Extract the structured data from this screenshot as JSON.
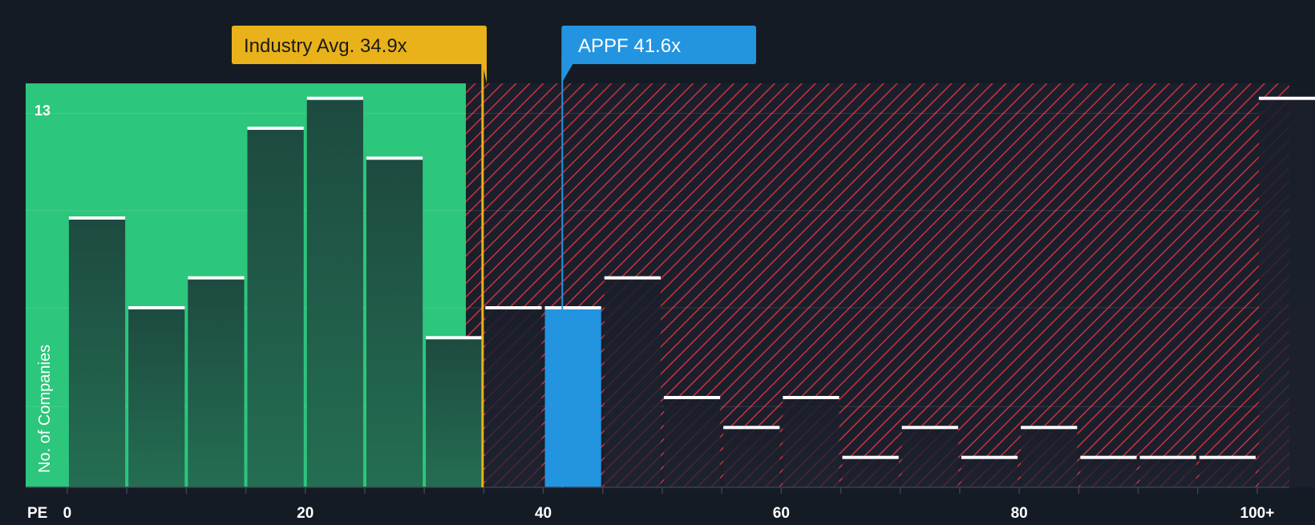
{
  "chart_data": {
    "type": "bar",
    "title": "",
    "xlabel": "PE",
    "ylabel": "No. of Companies",
    "x_tick_labels": [
      {
        "value": 0,
        "label": "0"
      },
      {
        "value": 20,
        "label": "20"
      },
      {
        "value": 40,
        "label": "40"
      },
      {
        "value": 60,
        "label": "60"
      },
      {
        "value": 80,
        "label": "80"
      },
      {
        "value": 100,
        "label": "100+"
      }
    ],
    "y_max_label": "13",
    "ylim": [
      0,
      13.5
    ],
    "xlim": [
      -3.5,
      102.7
    ],
    "bin_width": 5,
    "bins": [
      {
        "start": 0,
        "count": 9
      },
      {
        "start": 5,
        "count": 6
      },
      {
        "start": 10,
        "count": 7
      },
      {
        "start": 15,
        "count": 12
      },
      {
        "start": 20,
        "count": 13
      },
      {
        "start": 25,
        "count": 11
      },
      {
        "start": 30,
        "count": 5
      },
      {
        "start": 35,
        "count": 6
      },
      {
        "start": 40,
        "count": 6
      },
      {
        "start": 45,
        "count": 7
      },
      {
        "start": 50,
        "count": 3
      },
      {
        "start": 55,
        "count": 2
      },
      {
        "start": 60,
        "count": 3
      },
      {
        "start": 65,
        "count": 1
      },
      {
        "start": 70,
        "count": 2
      },
      {
        "start": 75,
        "count": 1
      },
      {
        "start": 80,
        "count": 2
      },
      {
        "start": 85,
        "count": 1
      },
      {
        "start": 90,
        "count": 1
      },
      {
        "start": 95,
        "count": 1
      },
      {
        "start": 100,
        "count": 13
      }
    ],
    "highlight_bin_start": 40,
    "fair_zone_end": 33.5,
    "industry_avg": {
      "value": 34.9,
      "label": "Industry Avg. 34.9x"
    },
    "company": {
      "value": 41.6,
      "label": "APPF 41.6x"
    },
    "colors": {
      "background": "#151b24",
      "fair_zone": "#2cc67c",
      "bar": "#1f4a40",
      "bar_gradient_bottom": "#236b50",
      "bar_overvalued": "#1c2030",
      "highlight_bar": "#2394e0",
      "hatch": "#c8333b",
      "industry_avg": "#e9b21a",
      "company": "#2394e0",
      "cap": "#ffffff",
      "text": "#ffffff"
    }
  }
}
